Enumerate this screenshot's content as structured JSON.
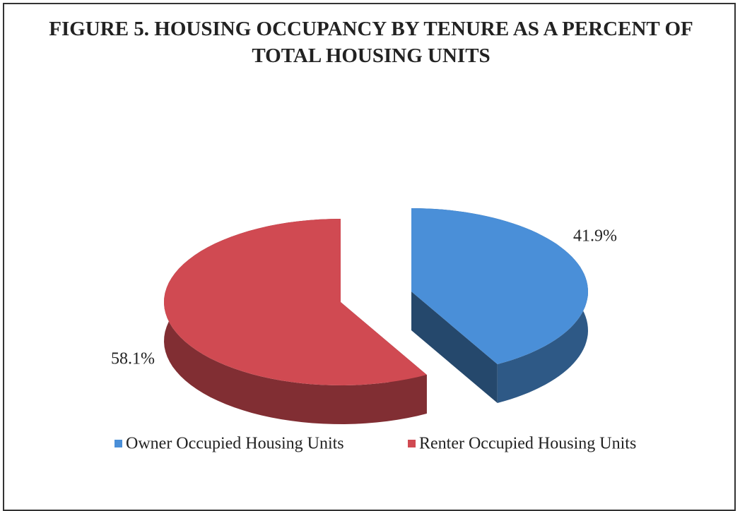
{
  "chart_data": {
    "type": "pie",
    "title": "FIGURE 5. HOUSING OCCUPANCY BY TENURE AS A PERCENT OF TOTAL HOUSING UNITS",
    "categories": [
      "Owner Occupied Housing Units",
      "Renter Occupied Housing Units"
    ],
    "values": [
      41.9,
      58.1
    ],
    "value_labels": [
      "41.9%",
      "58.1%"
    ],
    "colors": [
      "#4a8fd8",
      "#d04a52"
    ],
    "legend": "bottom"
  }
}
